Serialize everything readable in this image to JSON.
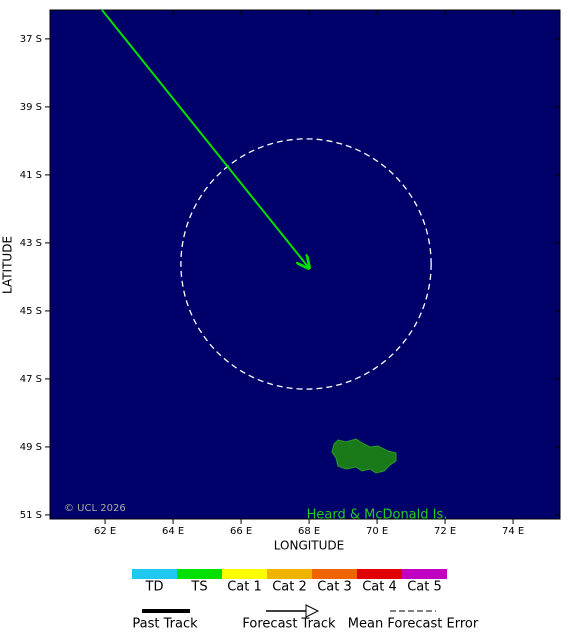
{
  "map": {
    "xlabel": "LONGITUDE",
    "ylabel": "LATITUDE",
    "xlim": [
      60.38,
      75.38
    ],
    "ylim": [
      36.15,
      51.12
    ],
    "xticks": [
      {
        "value": 62,
        "label": "62 E"
      },
      {
        "value": 64,
        "label": "64 E"
      },
      {
        "value": 66,
        "label": "66 E"
      },
      {
        "value": 68,
        "label": "68 E"
      },
      {
        "value": 70,
        "label": "70 E"
      },
      {
        "value": 72,
        "label": "72 E"
      },
      {
        "value": 74,
        "label": "74 E"
      }
    ],
    "yticks": [
      {
        "value": 37,
        "label": "37 S"
      },
      {
        "value": 39,
        "label": "39 S"
      },
      {
        "value": 41,
        "label": "41 S"
      },
      {
        "value": 43,
        "label": "43 S"
      },
      {
        "value": 45,
        "label": "45 S"
      },
      {
        "value": 47,
        "label": "47 S"
      },
      {
        "value": 49,
        "label": "49 S"
      },
      {
        "value": 51,
        "label": "51 S"
      }
    ],
    "forecast_track": {
      "color": "#00e000",
      "lon": [
        61.91,
        68.0
      ],
      "lat": [
        36.15,
        43.74
      ]
    },
    "error_circle": {
      "lon": 67.91,
      "lat": 43.62,
      "radius": 3.68
    },
    "credit": "© UCL 2026",
    "place_label": "Heard & McDonald Is.",
    "categories": [
      {
        "name": "TD",
        "color": "#1ec8f0"
      },
      {
        "name": "TS",
        "color": "#00e000"
      },
      {
        "name": "Cat 1",
        "color": "#ffff00"
      },
      {
        "name": "Cat 2",
        "color": "#f0b400"
      },
      {
        "name": "Cat 3",
        "color": "#f06400"
      },
      {
        "name": "Cat 4",
        "color": "#e00000"
      },
      {
        "name": "Cat 5",
        "color": "#c000c0"
      }
    ],
    "legend_items": [
      "Past Track",
      "Forecast Track",
      "Mean Forecast Error"
    ]
  }
}
